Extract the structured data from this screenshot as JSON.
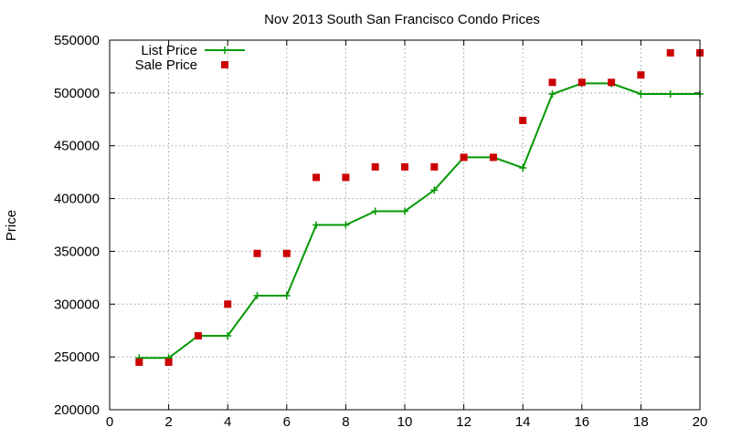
{
  "chart_data": {
    "type": "line",
    "title": "Nov 2013 South San Francisco Condo Prices",
    "xlabel": "",
    "ylabel": "Price",
    "xlim": [
      0,
      20
    ],
    "ylim": [
      200000,
      550000
    ],
    "x_ticks": [
      0,
      2,
      4,
      6,
      8,
      10,
      12,
      14,
      16,
      18,
      20
    ],
    "y_ticks": [
      200000,
      250000,
      300000,
      350000,
      400000,
      450000,
      500000,
      550000
    ],
    "grid": true,
    "legend_position": "top-left",
    "series": [
      {
        "name": "List Price",
        "style": "line-with-plus",
        "color": "#009900",
        "x": [
          1,
          2,
          3,
          4,
          5,
          6,
          7,
          8,
          9,
          10,
          11,
          12,
          13,
          14,
          15,
          16,
          17,
          18,
          19,
          20
        ],
        "values": [
          249000,
          249000,
          270000,
          270000,
          308000,
          308000,
          375000,
          375000,
          388000,
          388000,
          408000,
          439000,
          439000,
          429000,
          499000,
          509000,
          509000,
          499000,
          499000,
          499000
        ]
      },
      {
        "name": "Sale Price",
        "style": "square-points",
        "color": "#cc0000",
        "x": [
          1,
          2,
          3,
          4,
          5,
          6,
          7,
          8,
          9,
          10,
          11,
          12,
          13,
          14,
          15,
          16,
          17,
          18,
          19,
          20
        ],
        "values": [
          245000,
          245000,
          270000,
          300000,
          348000,
          348000,
          420000,
          420000,
          430000,
          430000,
          430000,
          439000,
          439000,
          474000,
          510000,
          510000,
          510000,
          517000,
          538000,
          538000
        ]
      }
    ]
  }
}
